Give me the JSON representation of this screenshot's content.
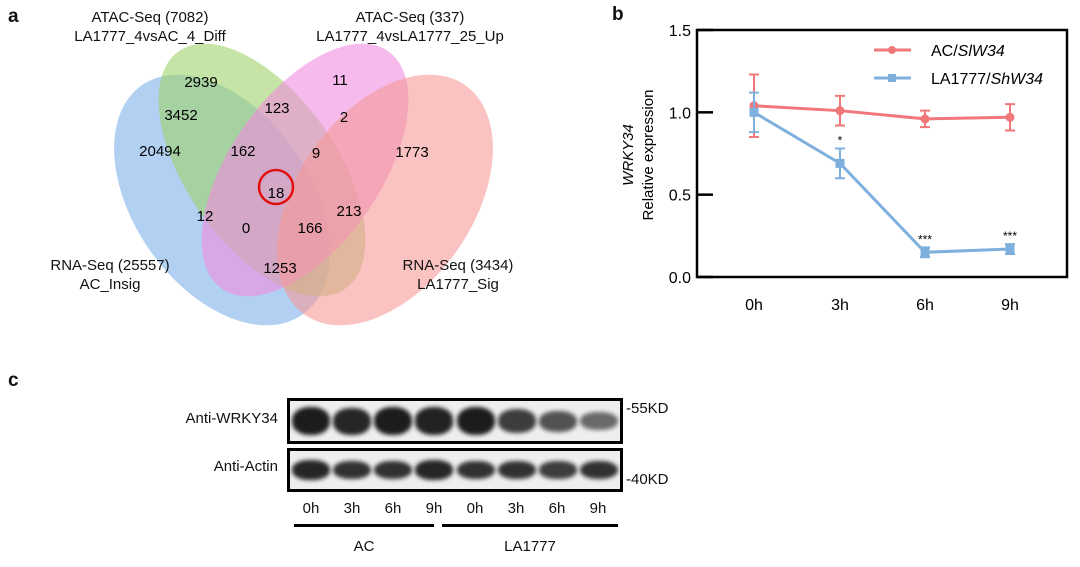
{
  "panels": {
    "a": "a",
    "b": "b",
    "c": "c"
  },
  "venn": {
    "sets": [
      {
        "title": "ATAC-Seq (7082)",
        "subtitle": "LA1777_4vsAC_4_Diff",
        "color": "#9fd26a"
      },
      {
        "title": "ATAC-Seq (337)",
        "subtitle": "LA1777_4vsLA1777_25_Up",
        "color": "#f08ce0"
      },
      {
        "title": "RNA-Seq (25557)",
        "subtitle": "AC_Insig",
        "color": "#7fb1ea"
      },
      {
        "title": "RNA-Seq (3434)",
        "subtitle": "LA1777_Sig",
        "color": "#f79a98"
      }
    ],
    "counts": [
      "2939",
      "11",
      "20494",
      "1773",
      "3452",
      "123",
      "2",
      "162",
      "9",
      "18",
      "213",
      "12",
      "0",
      "166",
      "1253"
    ],
    "highlight": "18"
  },
  "chart_data": {
    "type": "line",
    "categories": [
      "0h",
      "3h",
      "6h",
      "9h"
    ],
    "ylabel_italic": "WRKY34",
    "ylabel": "Relative expression",
    "ylim": [
      0,
      1.5
    ],
    "yticks": [
      "0.0",
      "0.5",
      "1.0",
      "1.5"
    ],
    "legend": "top-right",
    "series": [
      {
        "name_prefix": "AC/",
        "name_italic": "SlW34",
        "color": "#f2777a",
        "marker": "circle",
        "values": [
          1.04,
          1.01,
          0.96,
          0.97
        ],
        "errors": [
          0.19,
          0.09,
          0.05,
          0.08
        ]
      },
      {
        "name_prefix": "LA1777/",
        "name_italic": "ShW34",
        "color": "#7fb0dd",
        "marker": "square",
        "values": [
          1.0,
          0.69,
          0.15,
          0.17
        ],
        "errors": [
          0.12,
          0.09,
          0.03,
          0.03
        ],
        "significance": [
          "",
          "*",
          "***",
          "***"
        ]
      }
    ]
  },
  "blot": {
    "rows": [
      "Anti-WRKY34",
      "Anti-Actin"
    ],
    "markers": [
      "-55KD",
      "-40KD"
    ],
    "lanes": [
      "0h",
      "3h",
      "6h",
      "9h",
      "0h",
      "3h",
      "6h",
      "9h"
    ],
    "groups": [
      "AC",
      "LA1777"
    ]
  }
}
